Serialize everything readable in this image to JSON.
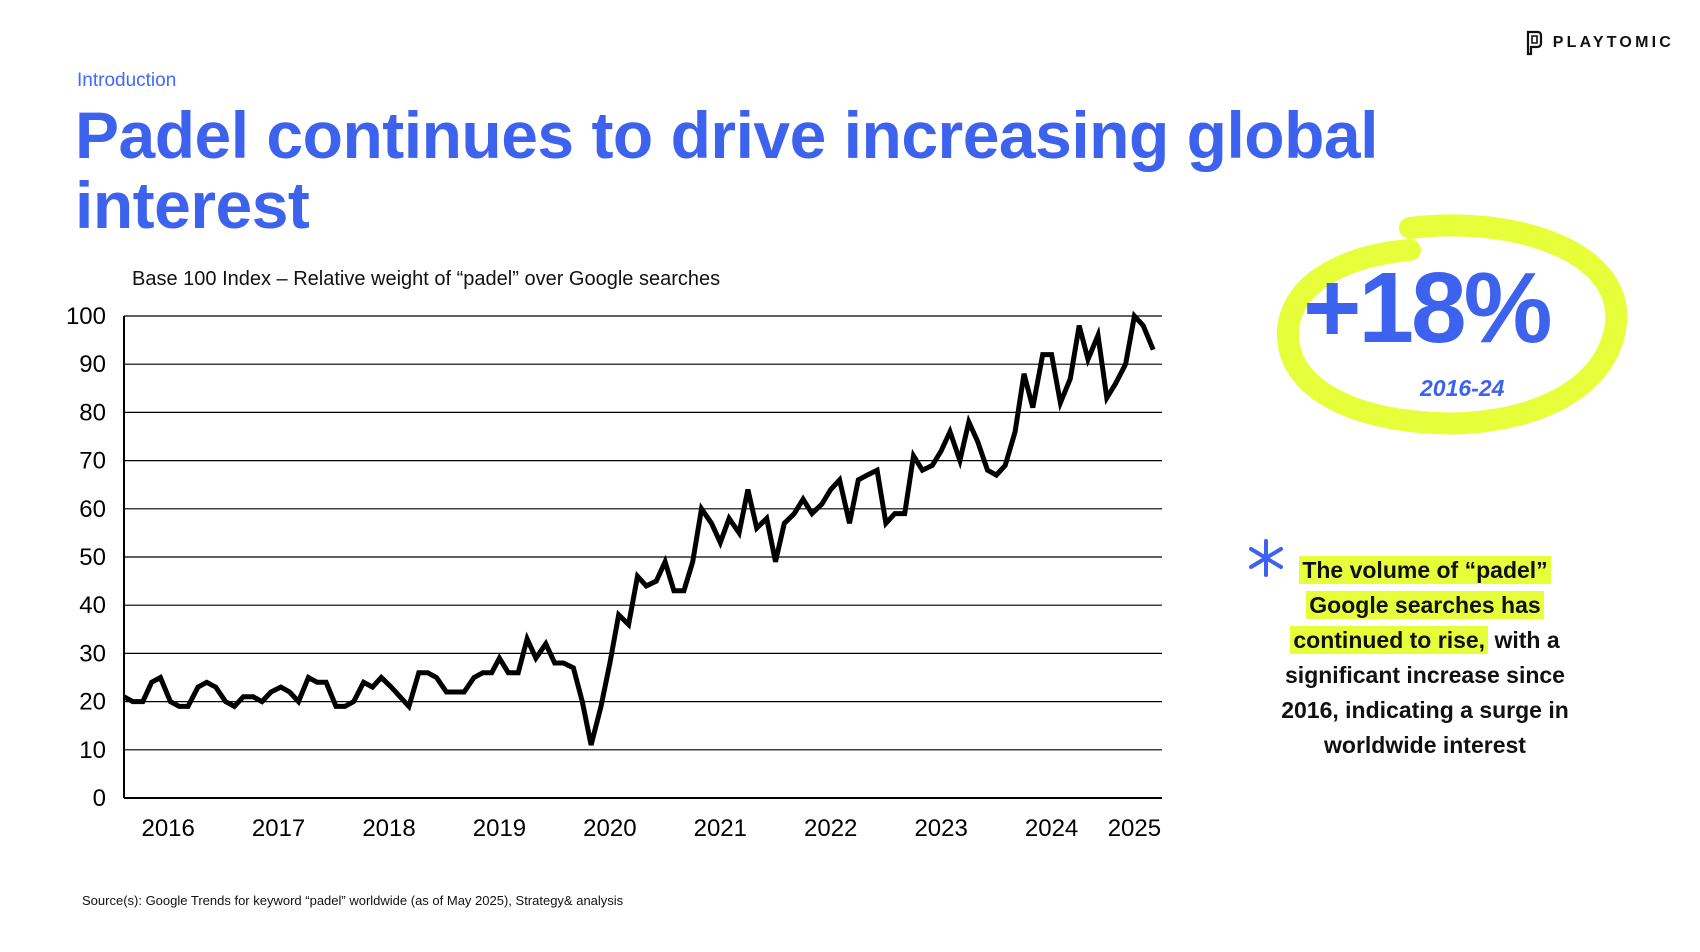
{
  "brand": {
    "name": "PLAYTOMIC",
    "logo_icon": "playtomic-logo-icon"
  },
  "section_label": "Introduction",
  "title": "Padel continues to drive increasing global interest",
  "colors": {
    "accent": "#3d62ee",
    "highlight": "#e6ff3a",
    "line": "#000000"
  },
  "stat": {
    "value": "+18%",
    "period": "2016-24"
  },
  "note": {
    "highlight_1": "The volume of “padel”",
    "highlight_2": "Google searches has",
    "highlight_3": "continued to rise,",
    "rest_1": "with a",
    "rest_2": "significant increase since",
    "rest_3": "2016, indicating a surge in",
    "rest_4": "worldwide interest",
    "icon": "asterisk-icon"
  },
  "source": "Source(s): Google Trends for keyword “padel” worldwide (as of May 2025), Strategy& analysis",
  "chart_data": {
    "type": "line",
    "title": "Base 100 Index – Relative weight of “padel” over Google searches",
    "xlabel": "",
    "ylabel": "",
    "ylim": [
      0,
      100
    ],
    "yticks": [
      0,
      10,
      20,
      30,
      40,
      50,
      60,
      70,
      80,
      90,
      100
    ],
    "xlim": [
      2015.6,
      2025.0
    ],
    "x_tick_labels": [
      {
        "label": "2016",
        "x": 2016.0
      },
      {
        "label": "2017",
        "x": 2017.0
      },
      {
        "label": "2018",
        "x": 2018.0
      },
      {
        "label": "2019",
        "x": 2019.0
      },
      {
        "label": "2020",
        "x": 2020.0
      },
      {
        "label": "2021",
        "x": 2021.0
      },
      {
        "label": "2022",
        "x": 2022.0
      },
      {
        "label": "2023",
        "x": 2023.0
      },
      {
        "label": "2024",
        "x": 2024.0
      },
      {
        "label": "2025",
        "x": 2024.75
      }
    ],
    "grid": true,
    "series": [
      {
        "values": [
          [
            2015.6,
            21
          ],
          [
            2015.68,
            20
          ],
          [
            2015.77,
            20
          ],
          [
            2015.85,
            24
          ],
          [
            2015.93,
            25
          ],
          [
            2016.02,
            20
          ],
          [
            2016.1,
            19
          ],
          [
            2016.18,
            19
          ],
          [
            2016.27,
            23
          ],
          [
            2016.35,
            24
          ],
          [
            2016.43,
            23
          ],
          [
            2016.52,
            20
          ],
          [
            2016.6,
            19
          ],
          [
            2016.68,
            21
          ],
          [
            2016.77,
            21
          ],
          [
            2016.85,
            20
          ],
          [
            2016.93,
            22
          ],
          [
            2017.02,
            23
          ],
          [
            2017.1,
            22
          ],
          [
            2017.18,
            20
          ],
          [
            2017.27,
            25
          ],
          [
            2017.35,
            24
          ],
          [
            2017.43,
            24
          ],
          [
            2017.52,
            19
          ],
          [
            2017.6,
            19
          ],
          [
            2017.68,
            20
          ],
          [
            2017.77,
            24
          ],
          [
            2017.85,
            23
          ],
          [
            2017.93,
            25
          ],
          [
            2018.02,
            23
          ],
          [
            2018.1,
            21
          ],
          [
            2018.18,
            19
          ],
          [
            2018.27,
            26
          ],
          [
            2018.35,
            26
          ],
          [
            2018.43,
            25
          ],
          [
            2018.52,
            22
          ],
          [
            2018.6,
            22
          ],
          [
            2018.68,
            22
          ],
          [
            2018.77,
            25
          ],
          [
            2018.85,
            26
          ],
          [
            2018.93,
            26
          ],
          [
            2019.0,
            29
          ],
          [
            2019.08,
            26
          ],
          [
            2019.17,
            26
          ],
          [
            2019.25,
            33
          ],
          [
            2019.33,
            29
          ],
          [
            2019.42,
            32
          ],
          [
            2019.5,
            28
          ],
          [
            2019.58,
            28
          ],
          [
            2019.67,
            27
          ],
          [
            2019.75,
            20
          ],
          [
            2019.83,
            11
          ],
          [
            2019.92,
            19
          ],
          [
            2020.0,
            28
          ],
          [
            2020.08,
            38
          ],
          [
            2020.17,
            36
          ],
          [
            2020.25,
            46
          ],
          [
            2020.33,
            44
          ],
          [
            2020.42,
            45
          ],
          [
            2020.5,
            49
          ],
          [
            2020.58,
            43
          ],
          [
            2020.67,
            43
          ],
          [
            2020.75,
            49
          ],
          [
            2020.83,
            60
          ],
          [
            2020.92,
            57
          ],
          [
            2021.0,
            53
          ],
          [
            2021.08,
            58
          ],
          [
            2021.17,
            55
          ],
          [
            2021.25,
            64
          ],
          [
            2021.33,
            56
          ],
          [
            2021.42,
            58
          ],
          [
            2021.5,
            49
          ],
          [
            2021.58,
            57
          ],
          [
            2021.67,
            59
          ],
          [
            2021.75,
            62
          ],
          [
            2021.83,
            59
          ],
          [
            2021.92,
            61
          ],
          [
            2022.0,
            64
          ],
          [
            2022.08,
            66
          ],
          [
            2022.17,
            57
          ],
          [
            2022.25,
            66
          ],
          [
            2022.33,
            67
          ],
          [
            2022.42,
            68
          ],
          [
            2022.5,
            57
          ],
          [
            2022.58,
            59
          ],
          [
            2022.67,
            59
          ],
          [
            2022.75,
            71
          ],
          [
            2022.83,
            68
          ],
          [
            2022.92,
            69
          ],
          [
            2023.0,
            72
          ],
          [
            2023.08,
            76
          ],
          [
            2023.17,
            70
          ],
          [
            2023.25,
            78
          ],
          [
            2023.33,
            74
          ],
          [
            2023.42,
            68
          ],
          [
            2023.5,
            67
          ],
          [
            2023.58,
            69
          ],
          [
            2023.67,
            76
          ],
          [
            2023.75,
            88
          ],
          [
            2023.83,
            81
          ],
          [
            2023.92,
            92
          ],
          [
            2024.0,
            92
          ],
          [
            2024.08,
            82
          ],
          [
            2024.17,
            87
          ],
          [
            2024.25,
            98
          ],
          [
            2024.33,
            91
          ],
          [
            2024.42,
            96
          ],
          [
            2024.5,
            83
          ],
          [
            2024.58,
            86
          ],
          [
            2024.67,
            90
          ],
          [
            2024.75,
            100
          ],
          [
            2024.83,
            98
          ],
          [
            2024.92,
            93
          ]
        ]
      }
    ]
  }
}
